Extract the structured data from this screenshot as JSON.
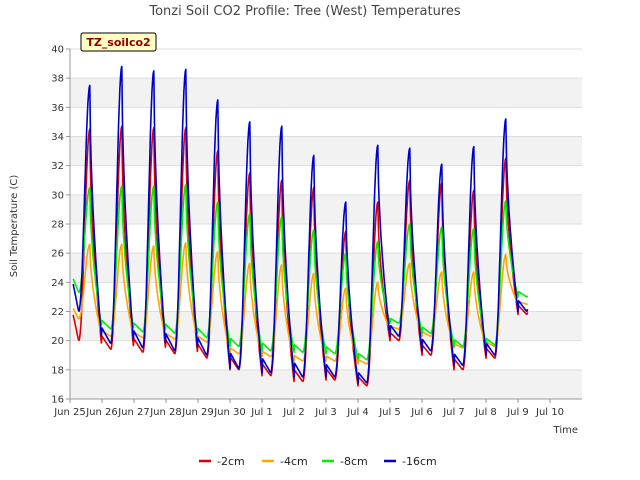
{
  "chart_data": {
    "type": "line",
    "title": "Tonzi Soil CO2 Profile: Tree (West) Temperatures",
    "xlabel": "Time",
    "ylabel": "Soil Temperature (C)",
    "badge": "TZ_soilco2",
    "ylim": [
      16,
      40
    ],
    "yticks": [
      "16",
      "18",
      "20",
      "22",
      "24",
      "26",
      "28",
      "30",
      "32",
      "34",
      "36",
      "38",
      "40"
    ],
    "xlim_days": [
      0,
      16
    ],
    "xticks": [
      "Jun 25",
      "Jun 26",
      "Jun 27",
      "Jun 28",
      "Jun 29",
      "Jun 30",
      "Jul 1",
      "Jul 2",
      "Jul 3",
      "Jul 4",
      "Jul 5",
      "Jul 6",
      "Jul 7",
      "Jul 8",
      "Jul 9",
      "Jul 10"
    ],
    "grid": true,
    "legend_position": "bottom",
    "series": [
      {
        "name": "-2cm",
        "color": "#dd0000",
        "x": [
          "Jun 25",
          "Jun 26",
          "Jun 27",
          "Jun 28",
          "Jun 29",
          "Jun 30",
          "Jul 1",
          "Jul 2",
          "Jul 3",
          "Jul 4",
          "Jul 5",
          "Jul 6",
          "Jul 7",
          "Jul 8",
          "Jul 9"
        ],
        "min": [
          20.0,
          19.4,
          19.2,
          19.1,
          18.8,
          18.0,
          17.6,
          17.2,
          17.3,
          16.9,
          20.0,
          19.0,
          18.0,
          18.8,
          21.8
        ],
        "max": [
          34.5,
          34.7,
          34.6,
          34.6,
          33.0,
          31.5,
          31.0,
          30.5,
          27.5,
          29.5,
          31.0,
          30.8,
          30.3,
          32.5,
          33.5
        ]
      },
      {
        "name": "-4cm",
        "color": "#ffa500",
        "x": [
          "Jun 25",
          "Jun 26",
          "Jun 27",
          "Jun 28",
          "Jun 29",
          "Jun 30",
          "Jul 1",
          "Jul 2",
          "Jul 3",
          "Jul 4",
          "Jul 5",
          "Jul 6",
          "Jul 7",
          "Jul 8",
          "Jul 9"
        ],
        "min": [
          21.5,
          20.3,
          20.2,
          20.1,
          19.9,
          19.1,
          18.9,
          18.6,
          18.6,
          18.4,
          20.8,
          20.3,
          19.5,
          19.6,
          22.5
        ],
        "max": [
          26.6,
          26.6,
          26.5,
          26.7,
          26.1,
          25.3,
          25.2,
          24.6,
          23.6,
          24.0,
          25.3,
          24.7,
          24.7,
          25.9,
          25.9
        ]
      },
      {
        "name": "-8cm",
        "color": "#00ee00",
        "x": [
          "Jun 25",
          "Jun 26",
          "Jun 27",
          "Jun 28",
          "Jun 29",
          "Jun 30",
          "Jul 1",
          "Jul 2",
          "Jul 3",
          "Jul 4",
          "Jul 5",
          "Jul 6",
          "Jul 7",
          "Jul 8",
          "Jul 9"
        ],
        "min": [
          23.3,
          20.8,
          20.6,
          20.5,
          20.2,
          19.6,
          19.3,
          19.2,
          19.1,
          18.7,
          21.2,
          20.5,
          19.6,
          19.7,
          23.0
        ],
        "max": [
          30.5,
          30.6,
          30.6,
          30.7,
          29.5,
          28.7,
          28.5,
          27.6,
          26.0,
          26.8,
          28.0,
          27.8,
          27.7,
          29.6,
          29.6
        ]
      },
      {
        "name": "-16cm",
        "color": "#0000cc",
        "x": [
          "Jun 25",
          "Jun 26",
          "Jun 27",
          "Jun 28",
          "Jun 29",
          "Jun 30",
          "Jul 1",
          "Jul 2",
          "Jul 3",
          "Jul 4",
          "Jul 5",
          "Jul 6",
          "Jul 7",
          "Jul 8",
          "Jul 9"
        ],
        "min": [
          22.0,
          19.8,
          19.5,
          19.3,
          19.0,
          18.1,
          17.8,
          17.5,
          17.5,
          17.1,
          20.3,
          19.3,
          18.3,
          19.0,
          22.0
        ],
        "max": [
          37.5,
          38.8,
          38.5,
          38.6,
          36.5,
          35.0,
          34.7,
          32.7,
          29.5,
          33.4,
          33.2,
          32.1,
          33.3,
          35.2,
          35.2
        ]
      }
    ]
  }
}
